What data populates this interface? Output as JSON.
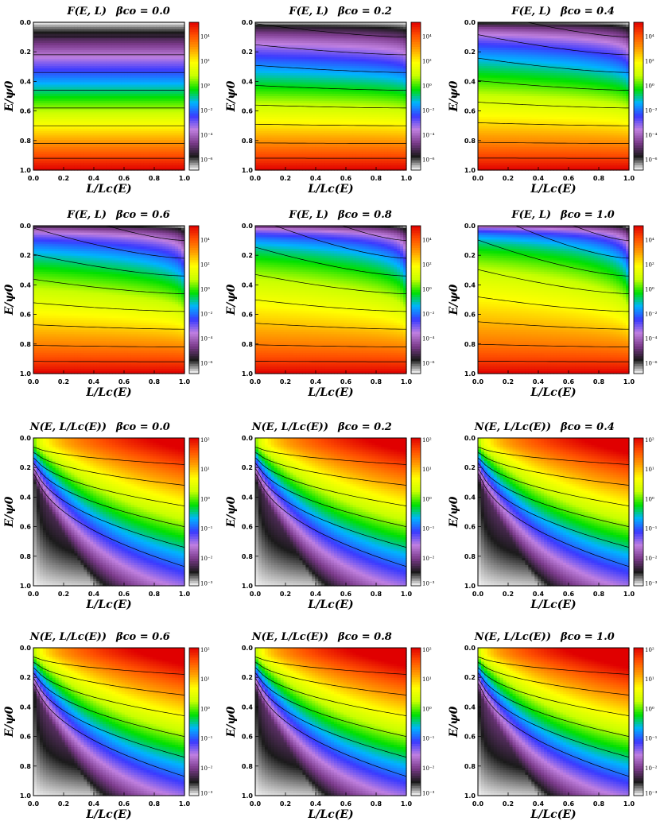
{
  "figure_colors": {
    "colormap": [
      "#ffffff",
      "#1a1a1a",
      "#7a3a8a",
      "#c080e0",
      "#3a3aff",
      "#00b4ff",
      "#00e000",
      "#c8ff00",
      "#ffff00",
      "#ffa000",
      "#ff5000",
      "#e00000"
    ],
    "contour_line": "#000000"
  },
  "chart_data": [
    {
      "type": "heatmap",
      "title": "F(E, L)",
      "subtitle": "βco = 0.0",
      "xlabel": "L/Lc(E)",
      "ylabel": "E/ψ0",
      "xlim": [
        0,
        1
      ],
      "ylim": [
        0,
        1
      ],
      "x_ticks": [
        "0.0",
        "0.2",
        "0.4",
        "0.6",
        "0.8",
        "1.0"
      ],
      "y_ticks": [
        "0.0",
        "0.2",
        "0.4",
        "0.6",
        "0.8",
        "1.0"
      ],
      "y_axis_inverted": true,
      "colorbar_ticks": [
        "10⁴",
        "10²",
        "10⁰",
        "10⁻²",
        "10⁻⁴",
        "10⁻⁶"
      ],
      "colorbar_log_range": [
        -7,
        4
      ],
      "beta_co": 0.0,
      "quantity": "F"
    },
    {
      "type": "heatmap",
      "title": "F(E, L)",
      "subtitle": "βco = 0.2",
      "xlabel": "L/Lc(E)",
      "ylabel": "E/ψ0",
      "xlim": [
        0,
        1
      ],
      "ylim": [
        0,
        1
      ],
      "x_ticks": [
        "0.0",
        "0.2",
        "0.4",
        "0.6",
        "0.8",
        "1.0"
      ],
      "y_ticks": [
        "0.0",
        "0.2",
        "0.4",
        "0.6",
        "0.8",
        "1.0"
      ],
      "y_axis_inverted": true,
      "colorbar_ticks": [
        "10⁴",
        "10²",
        "10⁰",
        "10⁻²",
        "10⁻⁴",
        "10⁻⁶"
      ],
      "colorbar_log_range": [
        -7,
        4
      ],
      "beta_co": 0.2,
      "quantity": "F"
    },
    {
      "type": "heatmap",
      "title": "F(E, L)",
      "subtitle": "βco = 0.4",
      "xlabel": "L/Lc(E)",
      "ylabel": "E/ψ0",
      "xlim": [
        0,
        1
      ],
      "ylim": [
        0,
        1
      ],
      "x_ticks": [
        "0.0",
        "0.2",
        "0.4",
        "0.6",
        "0.8",
        "1.0"
      ],
      "y_ticks": [
        "0.0",
        "0.2",
        "0.4",
        "0.6",
        "0.8",
        "1.0"
      ],
      "y_axis_inverted": true,
      "colorbar_ticks": [
        "10⁴",
        "10²",
        "10⁰",
        "10⁻²",
        "10⁻⁴",
        "10⁻⁶"
      ],
      "colorbar_log_range": [
        -7,
        4
      ],
      "beta_co": 0.4,
      "quantity": "F"
    },
    {
      "type": "heatmap",
      "title": "F(E, L)",
      "subtitle": "βco = 0.6",
      "xlabel": "L/Lc(E)",
      "ylabel": "E/ψ0",
      "xlim": [
        0,
        1
      ],
      "ylim": [
        0,
        1
      ],
      "x_ticks": [
        "0.0",
        "0.2",
        "0.4",
        "0.6",
        "0.8",
        "1.0"
      ],
      "y_ticks": [
        "0.0",
        "0.2",
        "0.4",
        "0.6",
        "0.8",
        "1.0"
      ],
      "y_axis_inverted": true,
      "colorbar_ticks": [
        "10⁴",
        "10²",
        "10⁰",
        "10⁻²",
        "10⁻⁴",
        "10⁻⁶"
      ],
      "colorbar_log_range": [
        -7,
        4
      ],
      "beta_co": 0.6,
      "quantity": "F"
    },
    {
      "type": "heatmap",
      "title": "F(E, L)",
      "subtitle": "βco = 0.8",
      "xlabel": "L/Lc(E)",
      "ylabel": "E/ψ0",
      "xlim": [
        0,
        1
      ],
      "ylim": [
        0,
        1
      ],
      "x_ticks": [
        "0.0",
        "0.2",
        "0.4",
        "0.6",
        "0.8",
        "1.0"
      ],
      "y_ticks": [
        "0.0",
        "0.2",
        "0.4",
        "0.6",
        "0.8",
        "1.0"
      ],
      "y_axis_inverted": true,
      "colorbar_ticks": [
        "10⁴",
        "10²",
        "10⁰",
        "10⁻²",
        "10⁻⁴",
        "10⁻⁶"
      ],
      "colorbar_log_range": [
        -7,
        4
      ],
      "beta_co": 0.8,
      "quantity": "F"
    },
    {
      "type": "heatmap",
      "title": "F(E, L)",
      "subtitle": "βco = 1.0",
      "xlabel": "L/Lc(E)",
      "ylabel": "E/ψ0",
      "xlim": [
        0,
        1
      ],
      "ylim": [
        0,
        1
      ],
      "x_ticks": [
        "0.0",
        "0.2",
        "0.4",
        "0.6",
        "0.8",
        "1.0"
      ],
      "y_ticks": [
        "0.0",
        "0.2",
        "0.4",
        "0.6",
        "0.8",
        "1.0"
      ],
      "y_axis_inverted": true,
      "colorbar_ticks": [
        "10⁴",
        "10²",
        "10⁰",
        "10⁻²",
        "10⁻⁴",
        "10⁻⁶"
      ],
      "colorbar_log_range": [
        -7,
        4
      ],
      "beta_co": 1.0,
      "quantity": "F"
    },
    {
      "type": "heatmap",
      "title": "N(E, L/Lc(E))",
      "subtitle": "βco = 0.0",
      "xlabel": "L/Lc(E)",
      "ylabel": "E/ψ0",
      "xlim": [
        0,
        1
      ],
      "ylim": [
        0,
        1
      ],
      "x_ticks": [
        "0.0",
        "0.2",
        "0.4",
        "0.6",
        "0.8",
        "1.0"
      ],
      "y_ticks": [
        "0.0",
        "0.2",
        "0.4",
        "0.6",
        "0.8",
        "1.0"
      ],
      "y_axis_inverted": true,
      "colorbar_ticks": [
        "10²",
        "10¹",
        "10⁰",
        "10⁻¹",
        "10⁻²",
        "10⁻³"
      ],
      "colorbar_log_range": [
        -3,
        2
      ],
      "beta_co": 0.0,
      "quantity": "N"
    },
    {
      "type": "heatmap",
      "title": "N(E, L/Lc(E))",
      "subtitle": "βco = 0.2",
      "xlabel": "L/Lc(E)",
      "ylabel": "E/ψ0",
      "xlim": [
        0,
        1
      ],
      "ylim": [
        0,
        1
      ],
      "x_ticks": [
        "0.0",
        "0.2",
        "0.4",
        "0.6",
        "0.8",
        "1.0"
      ],
      "y_ticks": [
        "0.0",
        "0.2",
        "0.4",
        "0.6",
        "0.8",
        "1.0"
      ],
      "y_axis_inverted": true,
      "colorbar_ticks": [
        "10²",
        "10¹",
        "10⁰",
        "10⁻¹",
        "10⁻²",
        "10⁻³"
      ],
      "colorbar_log_range": [
        -3,
        2
      ],
      "beta_co": 0.2,
      "quantity": "N"
    },
    {
      "type": "heatmap",
      "title": "N(E, L/Lc(E))",
      "subtitle": "βco = 0.4",
      "xlabel": "L/Lc(E)",
      "ylabel": "E/ψ0",
      "xlim": [
        0,
        1
      ],
      "ylim": [
        0,
        1
      ],
      "x_ticks": [
        "0.0",
        "0.2",
        "0.4",
        "0.6",
        "0.8",
        "1.0"
      ],
      "y_ticks": [
        "0.0",
        "0.2",
        "0.4",
        "0.6",
        "0.8",
        "1.0"
      ],
      "y_axis_inverted": true,
      "colorbar_ticks": [
        "10²",
        "10¹",
        "10⁰",
        "10⁻¹",
        "10⁻²",
        "10⁻³"
      ],
      "colorbar_log_range": [
        -3,
        2
      ],
      "beta_co": 0.4,
      "quantity": "N"
    },
    {
      "type": "heatmap",
      "title": "N(E, L/Lc(E))",
      "subtitle": "βco = 0.6",
      "xlabel": "L/Lc(E)",
      "ylabel": "E/ψ0",
      "xlim": [
        0,
        1
      ],
      "ylim": [
        0,
        1
      ],
      "x_ticks": [
        "0.0",
        "0.2",
        "0.4",
        "0.6",
        "0.8",
        "1.0"
      ],
      "y_ticks": [
        "0.0",
        "0.2",
        "0.4",
        "0.6",
        "0.8",
        "1.0"
      ],
      "y_axis_inverted": true,
      "colorbar_ticks": [
        "10²",
        "10¹",
        "10⁰",
        "10⁻¹",
        "10⁻²",
        "10⁻³"
      ],
      "colorbar_log_range": [
        -3,
        2
      ],
      "beta_co": 0.6,
      "quantity": "N"
    },
    {
      "type": "heatmap",
      "title": "N(E, L/Lc(E))",
      "subtitle": "βco = 0.8",
      "xlabel": "L/Lc(E)",
      "ylabel": "E/ψ0",
      "xlim": [
        0,
        1
      ],
      "ylim": [
        0,
        1
      ],
      "x_ticks": [
        "0.0",
        "0.2",
        "0.4",
        "0.6",
        "0.8",
        "1.0"
      ],
      "y_ticks": [
        "0.0",
        "0.2",
        "0.4",
        "0.6",
        "0.8",
        "1.0"
      ],
      "y_axis_inverted": true,
      "colorbar_ticks": [
        "10²",
        "10¹",
        "10⁰",
        "10⁻¹",
        "10⁻²",
        "10⁻³"
      ],
      "colorbar_log_range": [
        -3,
        2
      ],
      "beta_co": 0.8,
      "quantity": "N"
    },
    {
      "type": "heatmap",
      "title": "N(E, L/Lc(E))",
      "subtitle": "βco = 1.0",
      "xlabel": "L/Lc(E)",
      "ylabel": "E/ψ0",
      "xlim": [
        0,
        1
      ],
      "ylim": [
        0,
        1
      ],
      "x_ticks": [
        "0.0",
        "0.2",
        "0.4",
        "0.6",
        "0.8",
        "1.0"
      ],
      "y_ticks": [
        "0.0",
        "0.2",
        "0.4",
        "0.6",
        "0.8",
        "1.0"
      ],
      "y_axis_inverted": true,
      "colorbar_ticks": [
        "10²",
        "10¹",
        "10⁰",
        "10⁻¹",
        "10⁻²",
        "10⁻³"
      ],
      "colorbar_log_range": [
        -3,
        2
      ],
      "beta_co": 1.0,
      "quantity": "N"
    }
  ]
}
